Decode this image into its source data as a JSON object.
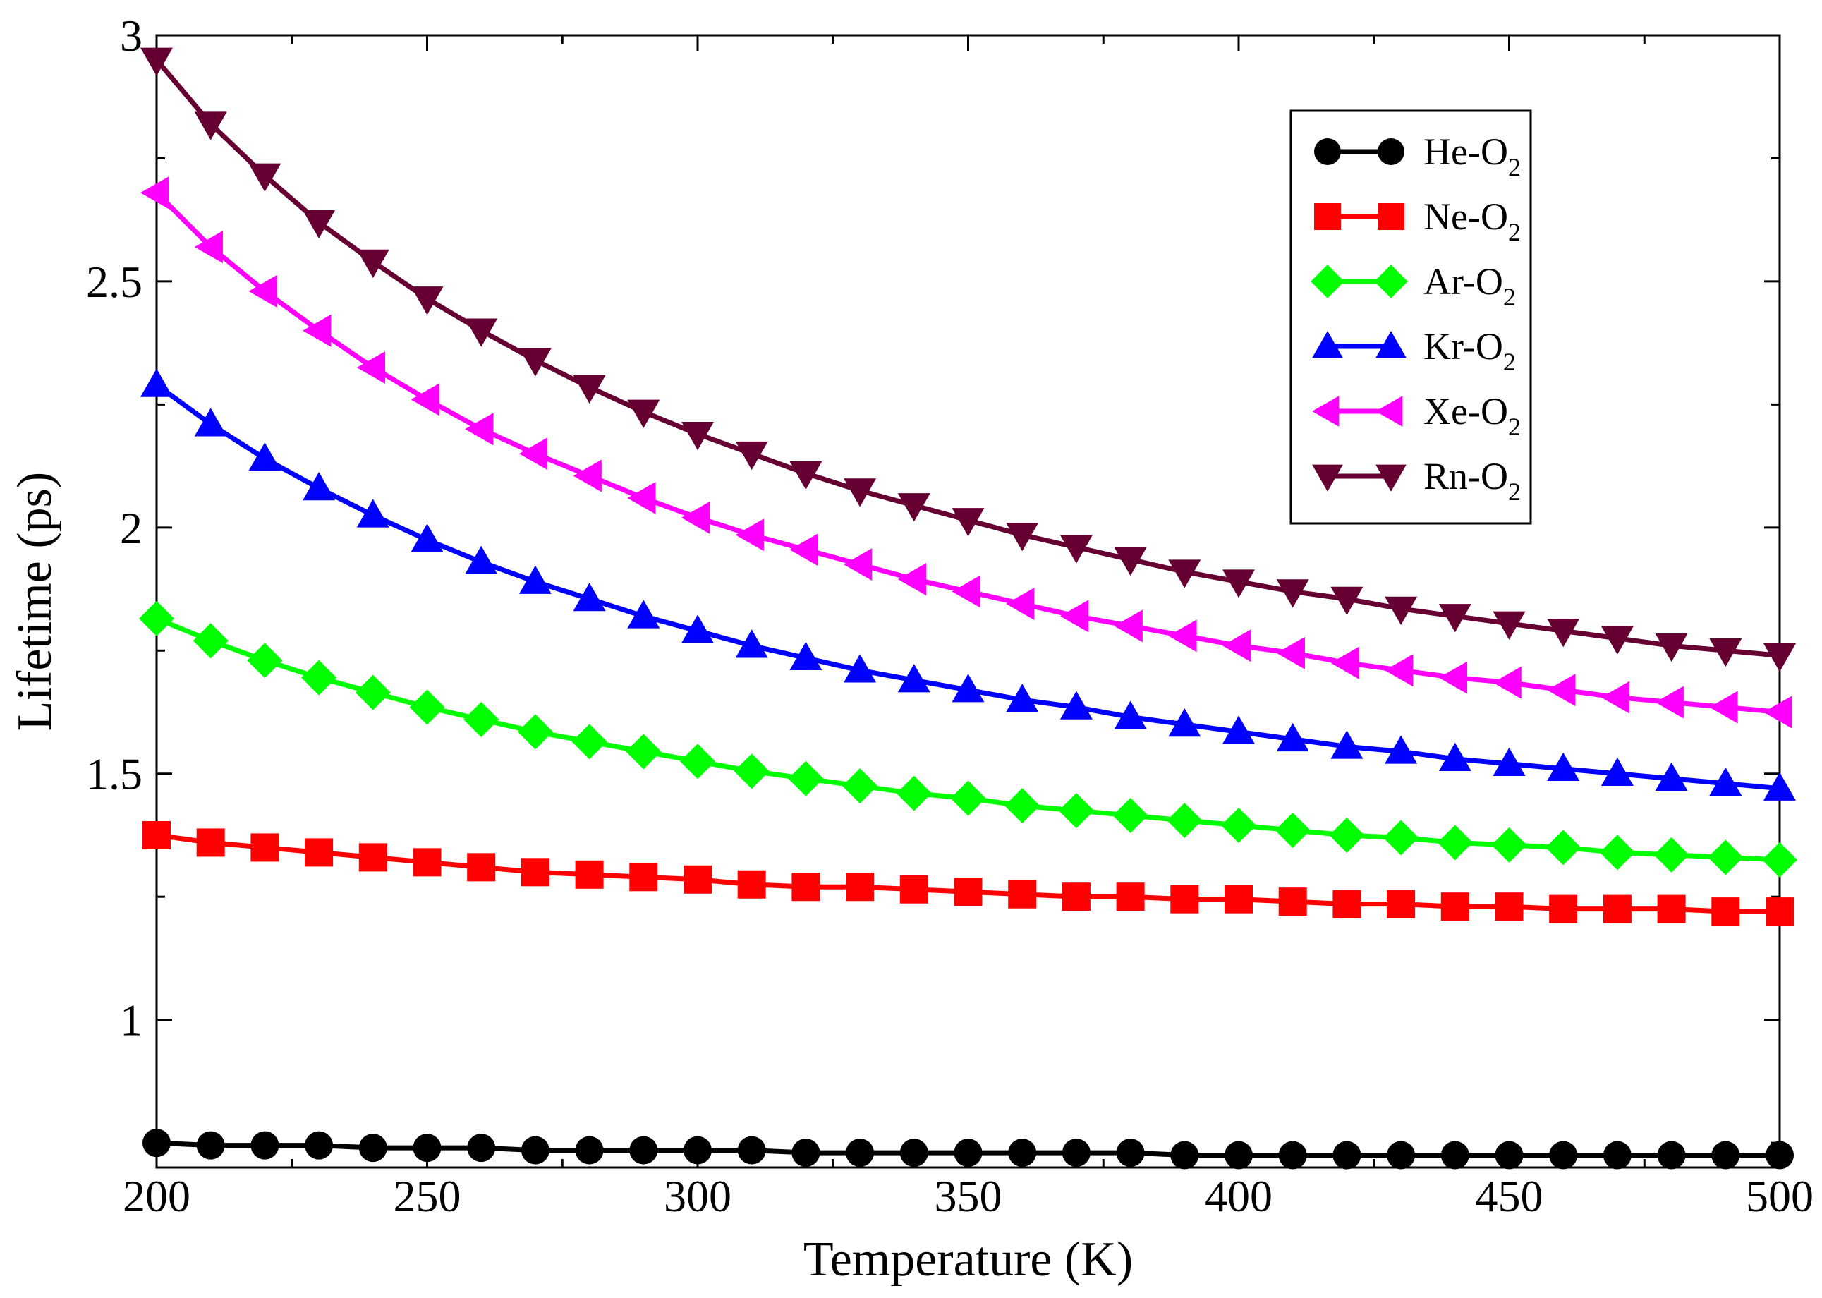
{
  "chart_data": {
    "type": "line",
    "title": "",
    "xlabel": "Temperature (K)",
    "ylabel": "Lifetime (ps)",
    "xlim": [
      200,
      500
    ],
    "ylim": [
      0.7,
      3
    ],
    "xticks": [
      200,
      250,
      300,
      350,
      400,
      450,
      500
    ],
    "xtick_labels": [
      "200",
      "250",
      "300",
      "350",
      "400",
      "450",
      "500"
    ],
    "yticks": [
      1,
      1.5,
      2,
      2.5,
      3
    ],
    "ytick_labels": [
      "1",
      "1.5",
      "2",
      "2.5",
      "3"
    ],
    "grid": false,
    "legend_position": "top-right",
    "x": [
      200,
      210,
      220,
      230,
      240,
      250,
      260,
      270,
      280,
      290,
      300,
      310,
      320,
      330,
      340,
      350,
      360,
      370,
      380,
      390,
      400,
      410,
      420,
      430,
      440,
      450,
      460,
      470,
      480,
      490,
      500
    ],
    "series": [
      {
        "name": "He-O2",
        "label_main": "He-O",
        "label_sub": "2",
        "color": "#000000",
        "marker": "circle",
        "values": [
          0.75,
          0.745,
          0.745,
          0.745,
          0.74,
          0.74,
          0.74,
          0.735,
          0.735,
          0.735,
          0.735,
          0.735,
          0.73,
          0.73,
          0.73,
          0.73,
          0.73,
          0.73,
          0.73,
          0.725,
          0.725,
          0.725,
          0.725,
          0.725,
          0.725,
          0.725,
          0.725,
          0.725,
          0.725,
          0.725,
          0.725
        ]
      },
      {
        "name": "Ne-O2",
        "label_main": "Ne-O",
        "label_sub": "2",
        "color": "#ff0000",
        "marker": "square",
        "values": [
          1.375,
          1.36,
          1.35,
          1.34,
          1.33,
          1.32,
          1.31,
          1.3,
          1.295,
          1.29,
          1.285,
          1.275,
          1.27,
          1.27,
          1.265,
          1.26,
          1.255,
          1.25,
          1.25,
          1.245,
          1.245,
          1.24,
          1.235,
          1.235,
          1.23,
          1.23,
          1.225,
          1.225,
          1.225,
          1.22,
          1.22
        ]
      },
      {
        "name": "Ar-O2",
        "label_main": "Ar-O",
        "label_sub": "2",
        "color": "#00ff00",
        "marker": "diamond",
        "values": [
          1.815,
          1.77,
          1.73,
          1.695,
          1.665,
          1.635,
          1.61,
          1.585,
          1.565,
          1.545,
          1.525,
          1.505,
          1.49,
          1.475,
          1.46,
          1.45,
          1.435,
          1.425,
          1.415,
          1.405,
          1.395,
          1.385,
          1.375,
          1.37,
          1.36,
          1.355,
          1.35,
          1.34,
          1.335,
          1.33,
          1.325
        ]
      },
      {
        "name": "Kr-O2",
        "label_main": "Kr-O",
        "label_sub": "2",
        "color": "#0000ff",
        "marker": "triangle-up",
        "values": [
          2.29,
          2.21,
          2.14,
          2.08,
          2.025,
          1.975,
          1.93,
          1.89,
          1.855,
          1.82,
          1.79,
          1.76,
          1.735,
          1.71,
          1.69,
          1.67,
          1.65,
          1.635,
          1.615,
          1.6,
          1.585,
          1.57,
          1.555,
          1.545,
          1.53,
          1.52,
          1.51,
          1.5,
          1.49,
          1.48,
          1.47
        ]
      },
      {
        "name": "Xe-O2",
        "label_main": "Xe-O",
        "label_sub": "2",
        "color": "#ff00ff",
        "marker": "triangle-left",
        "values": [
          2.68,
          2.57,
          2.48,
          2.4,
          2.325,
          2.26,
          2.2,
          2.15,
          2.105,
          2.06,
          2.02,
          1.985,
          1.955,
          1.925,
          1.895,
          1.87,
          1.845,
          1.82,
          1.8,
          1.78,
          1.76,
          1.745,
          1.725,
          1.71,
          1.695,
          1.685,
          1.67,
          1.655,
          1.645,
          1.635,
          1.625
        ]
      },
      {
        "name": "Rn-O2",
        "label_main": "Rn-O",
        "label_sub": "2",
        "color": "#660033",
        "marker": "triangle-down",
        "values": [
          2.95,
          2.82,
          2.715,
          2.62,
          2.54,
          2.465,
          2.4,
          2.34,
          2.285,
          2.235,
          2.19,
          2.15,
          2.11,
          2.075,
          2.045,
          2.015,
          1.985,
          1.96,
          1.935,
          1.91,
          1.89,
          1.87,
          1.855,
          1.835,
          1.82,
          1.805,
          1.79,
          1.775,
          1.76,
          1.75,
          1.74
        ]
      }
    ]
  }
}
